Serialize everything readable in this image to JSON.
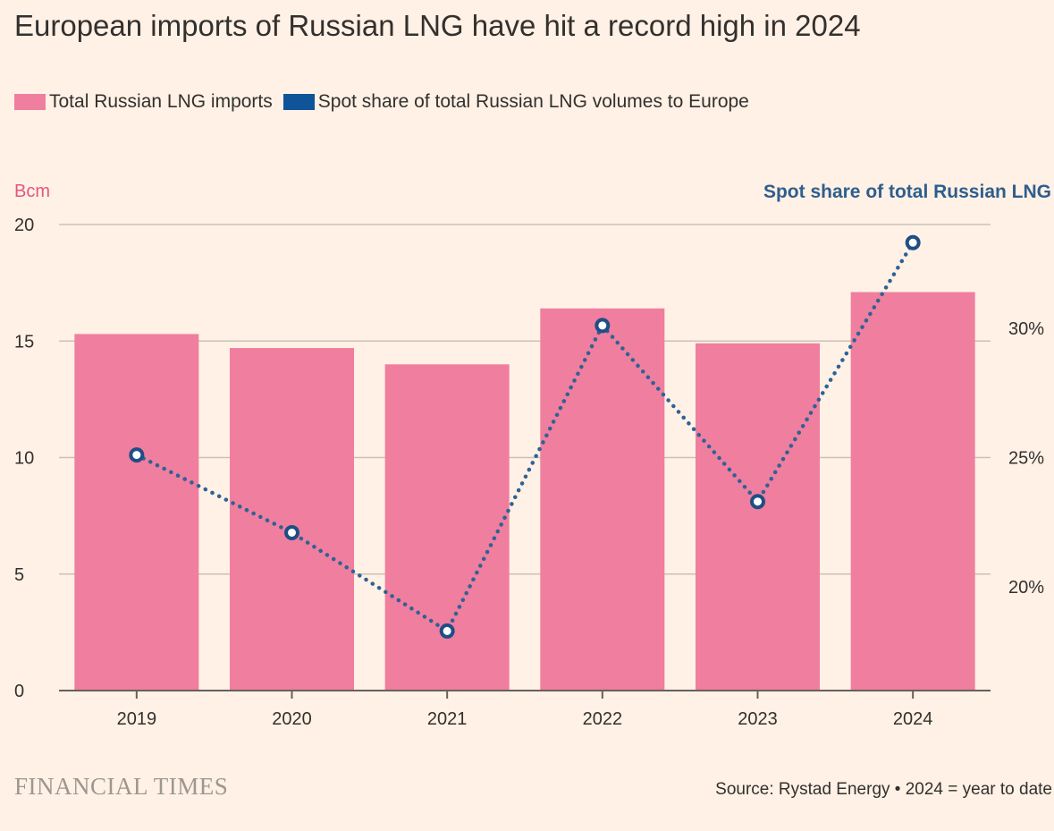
{
  "colors": {
    "background": "#FFF1E5",
    "bar": "#F07E9E",
    "line": "#2E6296",
    "legend_line": "#0F5499",
    "left_axis_label": "#E4567F",
    "right_axis_label": "#2E5E8E",
    "grid": "#CCC1B7",
    "axis": "#66605C"
  },
  "legend": {
    "bar_label": "Total Russian LNG imports",
    "line_label": "Spot share of total Russian LNG volumes to Europe"
  },
  "footer": {
    "brand": "FINANCIAL TIMES",
    "source": "Source: Rystad Energy • 2024 = year to date"
  },
  "chart_data": {
    "type": "bar",
    "title": "European imports of Russian LNG have hit a record high in 2024",
    "categories": [
      "2019",
      "2020",
      "2021",
      "2022",
      "2023",
      "2024"
    ],
    "series": [
      {
        "name": "Total Russian LNG imports",
        "type": "bar",
        "axis": "left",
        "values": [
          15.3,
          14.7,
          14.0,
          16.4,
          14.9,
          17.1
        ]
      },
      {
        "name": "Spot share of total Russian LNG volumes to Europe",
        "type": "line",
        "axis": "right",
        "style": "dotted",
        "values": [
          25.1,
          22.1,
          18.3,
          30.1,
          23.3,
          33.3
        ]
      }
    ],
    "y_left": {
      "label": "Bcm",
      "range": [
        0,
        20
      ],
      "ticks": [
        0,
        5,
        10,
        15,
        20
      ],
      "tick_labels": [
        "0",
        "5",
        "10",
        "15",
        "20"
      ]
    },
    "y_right": {
      "label": "Spot share of total Russian LNG",
      "range": [
        16,
        34
      ],
      "ticks": [
        20,
        25,
        30
      ],
      "tick_labels": [
        "20%",
        "25%",
        "30%"
      ]
    },
    "grid": true
  }
}
